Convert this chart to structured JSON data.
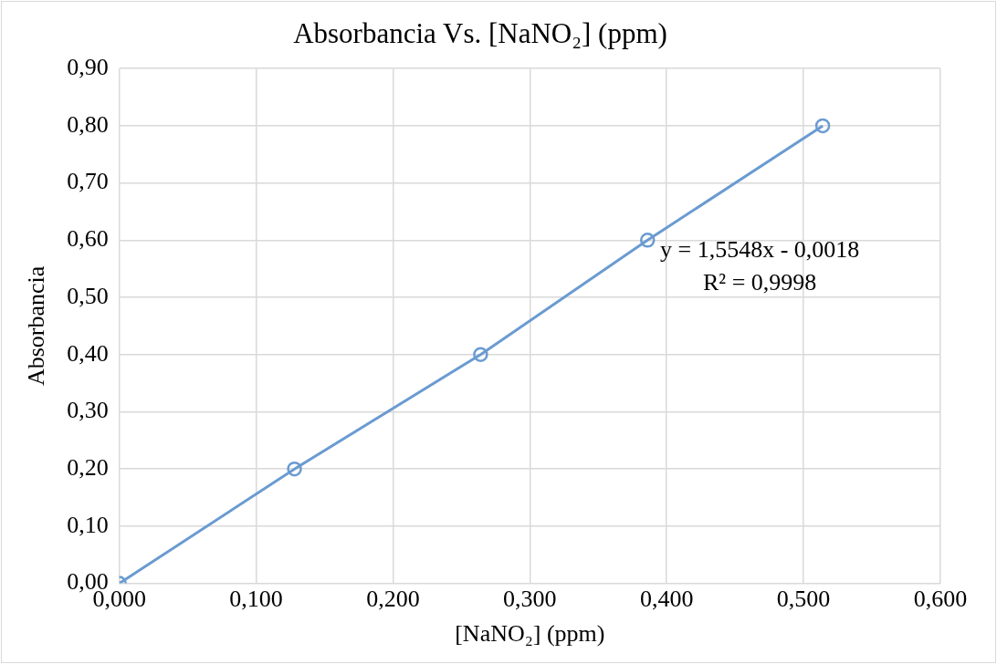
{
  "chart_data": {
    "type": "line",
    "title": "Absorbancia Vs. [NaNO₂] (ppm)",
    "xlabel": "[NaNO₂] (ppm)",
    "ylabel": "Absorbancia",
    "x": [
      0,
      0.128,
      0.264,
      0.386,
      0.514
    ],
    "series": [
      {
        "color": "#6a9bd1",
        "values": [
          0,
          0.2,
          0.4,
          0.6,
          0.8
        ]
      }
    ],
    "xlim": [
      0,
      0.6
    ],
    "xticks": [
      {
        "value": 0,
        "label": "0,000"
      },
      {
        "value": 0.1,
        "label": "0,100"
      },
      {
        "value": 0.2,
        "label": "0,200"
      },
      {
        "value": 0.3,
        "label": "0,300"
      },
      {
        "value": 0.4,
        "label": "0,400"
      },
      {
        "value": 0.5,
        "label": "0,500"
      },
      {
        "value": 0.6,
        "label": "0,600"
      }
    ],
    "ylim": [
      0,
      0.9
    ],
    "yticks": [
      {
        "value": 0,
        "label": "0,00"
      },
      {
        "value": 0.1,
        "label": "0,10"
      },
      {
        "value": 0.2,
        "label": "0,20"
      },
      {
        "value": 0.3,
        "label": "0,30"
      },
      {
        "value": 0.4,
        "label": "0,40"
      },
      {
        "value": 0.5,
        "label": "0,50"
      },
      {
        "value": 0.6,
        "label": "0,60"
      },
      {
        "value": 0.7,
        "label": "0,70"
      },
      {
        "value": 0.8,
        "label": "0,80"
      },
      {
        "value": 0.9,
        "label": "0,90"
      }
    ],
    "annotations": [
      "y = 1,5548x - 0,0018",
      "R² = 0,9998"
    ],
    "grid": true,
    "marker": "circle",
    "line_style": "solid"
  }
}
